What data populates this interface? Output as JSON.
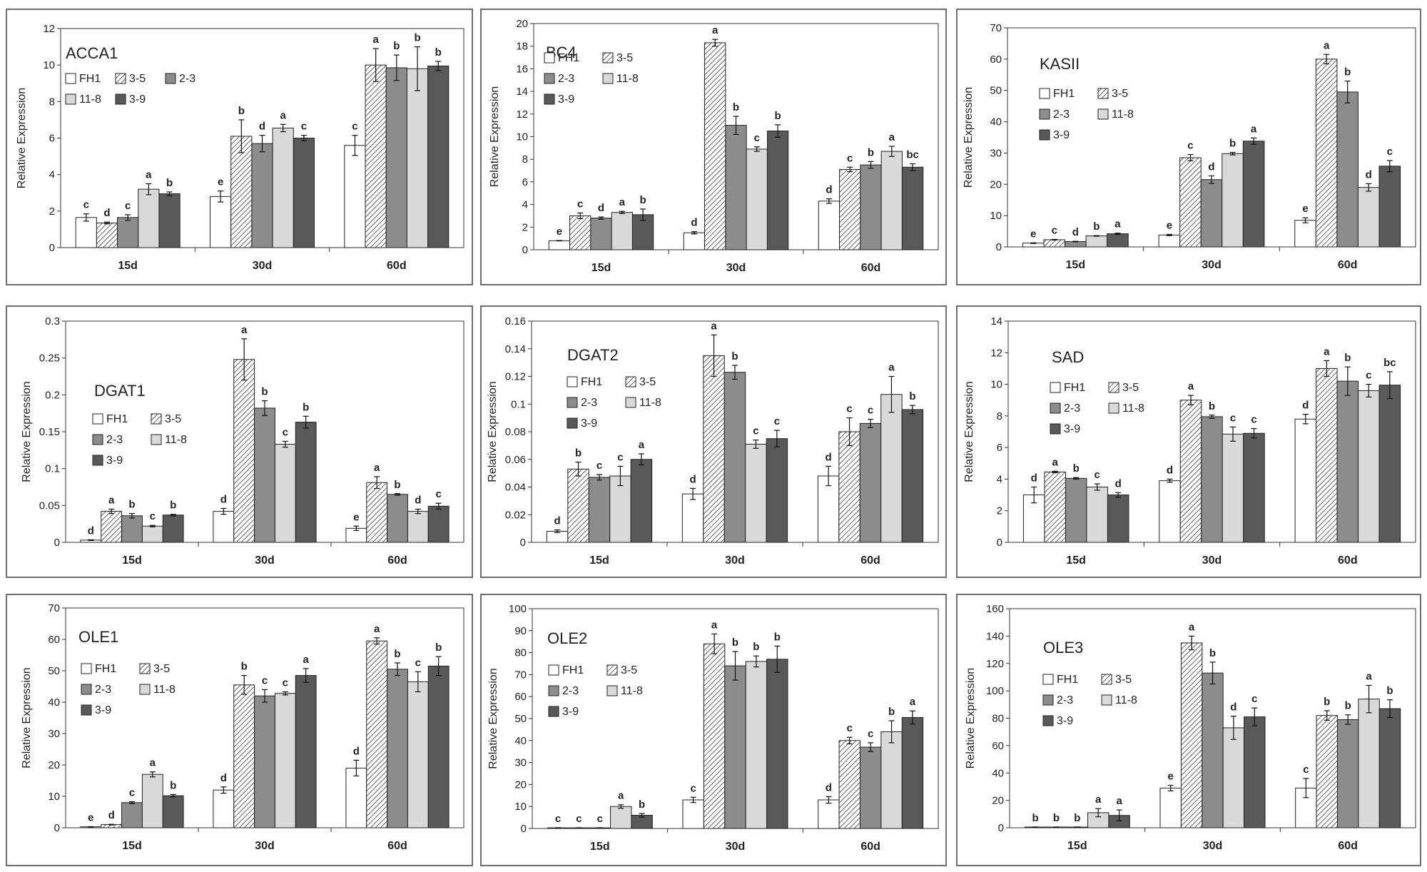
{
  "colors": {
    "FH1": "#ffffff",
    "3-5": "hatch",
    "2-3": "#8c8c8c",
    "11-8": "#d9d9d9",
    "3-9": "#595959",
    "frame": "#6e6e6e",
    "ink": "#222222"
  },
  "chart_data": [
    {
      "type": "bar",
      "title": "ACCA1",
      "ylabel": "Relative Expression",
      "categories": [
        "15d",
        "30d",
        "60d"
      ],
      "ylim": [
        0,
        12
      ],
      "yticks": [
        "0",
        "2",
        "4",
        "6",
        "8",
        "10",
        "12"
      ],
      "legend": [
        "FH1",
        "3-5",
        "2-3",
        "11-8",
        "3-9"
      ],
      "series": [
        {
          "name": "FH1",
          "values": [
            1.65,
            2.8,
            5.6
          ],
          "errors": [
            0.2,
            0.3,
            0.55
          ],
          "letters": [
            "c",
            "e",
            "c"
          ]
        },
        {
          "name": "3-5",
          "values": [
            1.35,
            6.1,
            10.0
          ],
          "errors": [
            0.05,
            0.9,
            0.9
          ],
          "letters": [
            "d",
            "b",
            "a"
          ]
        },
        {
          "name": "2-3",
          "values": [
            1.65,
            5.7,
            9.85
          ],
          "errors": [
            0.15,
            0.45,
            0.7
          ],
          "letters": [
            "c",
            "d",
            "b"
          ]
        },
        {
          "name": "11-8",
          "values": [
            3.2,
            6.55,
            9.8
          ],
          "errors": [
            0.3,
            0.2,
            1.2
          ],
          "letters": [
            "a",
            "a",
            "b"
          ]
        },
        {
          "name": "3-9",
          "values": [
            2.95,
            6.0,
            9.95
          ],
          "errors": [
            0.1,
            0.15,
            0.25
          ],
          "letters": [
            "b",
            "c",
            "b"
          ]
        }
      ]
    },
    {
      "type": "bar",
      "title": "BC4",
      "ylabel": "Relative Expression",
      "categories": [
        "15d",
        "30d",
        "60d"
      ],
      "ylim": [
        0,
        20
      ],
      "yticks": [
        "0",
        "2",
        "4",
        "6",
        "8",
        "10",
        "12",
        "14",
        "16",
        "18",
        "20"
      ],
      "legend": [
        "FH1",
        "3-5",
        "2-3",
        "11-8",
        "3-9"
      ],
      "series": [
        {
          "name": "FH1",
          "values": [
            0.8,
            1.5,
            4.3
          ],
          "errors": [
            0.02,
            0.1,
            0.2
          ],
          "letters": [
            "e",
            "d",
            "d"
          ]
        },
        {
          "name": "3-5",
          "values": [
            3.0,
            18.3,
            7.1
          ],
          "errors": [
            0.25,
            0.3,
            0.2
          ],
          "letters": [
            "c",
            "a",
            "c"
          ]
        },
        {
          "name": "2-3",
          "values": [
            2.8,
            11.0,
            7.5
          ],
          "errors": [
            0.1,
            0.8,
            0.3
          ],
          "letters": [
            "d",
            "b",
            "b"
          ]
        },
        {
          "name": "11-8",
          "values": [
            3.3,
            8.9,
            8.7
          ],
          "errors": [
            0.1,
            0.2,
            0.45
          ],
          "letters": [
            "a",
            "c",
            "a"
          ]
        },
        {
          "name": "3-9",
          "values": [
            3.1,
            10.5,
            7.3
          ],
          "errors": [
            0.5,
            0.55,
            0.3
          ],
          "letters": [
            "b",
            "b",
            "bc"
          ]
        }
      ]
    },
    {
      "type": "bar",
      "title": "KASII",
      "ylabel": "Relative Expression",
      "categories": [
        "15d",
        "30d",
        "60d"
      ],
      "ylim": [
        0,
        70
      ],
      "yticks": [
        "0",
        "10",
        "20",
        "30",
        "40",
        "50",
        "60",
        "70"
      ],
      "legend": [
        "FH1",
        "3-5",
        "2-3",
        "11-8",
        "3-9"
      ],
      "series": [
        {
          "name": "FH1",
          "values": [
            1.2,
            3.8,
            8.5
          ],
          "errors": [
            0.1,
            0.2,
            0.8
          ],
          "letters": [
            "e",
            "e",
            "e"
          ]
        },
        {
          "name": "3-5",
          "values": [
            2.3,
            28.5,
            60.0
          ],
          "errors": [
            0.1,
            1.0,
            1.5
          ],
          "letters": [
            "c",
            "c",
            "a"
          ]
        },
        {
          "name": "2-3",
          "values": [
            1.7,
            21.5,
            49.5
          ],
          "errors": [
            0.1,
            1.2,
            3.5
          ],
          "letters": [
            "d",
            "d",
            "b"
          ]
        },
        {
          "name": "11-8",
          "values": [
            3.5,
            29.8,
            19.0
          ],
          "errors": [
            0.1,
            0.4,
            1.2
          ],
          "letters": [
            "b",
            "b",
            "d"
          ]
        },
        {
          "name": "3-9",
          "values": [
            4.2,
            33.8,
            25.8
          ],
          "errors": [
            0.2,
            1.0,
            1.8
          ],
          "letters": [
            "a",
            "a",
            "c"
          ]
        }
      ]
    },
    {
      "type": "bar",
      "title": "DGAT1",
      "ylabel": "Relative Expression",
      "categories": [
        "15d",
        "30d",
        "60d"
      ],
      "ylim": [
        0,
        0.3
      ],
      "yticks": [
        "0",
        "0.05",
        "0.1",
        "0.15",
        "0.2",
        "0.25",
        "0.3"
      ],
      "legend": [
        "FH1",
        "3-5",
        "2-3",
        "11-8",
        "3-9"
      ],
      "series": [
        {
          "name": "FH1",
          "values": [
            0.003,
            0.042,
            0.019
          ],
          "errors": [
            0.0005,
            0.004,
            0.003
          ],
          "letters": [
            "d",
            "d",
            "e"
          ]
        },
        {
          "name": "3-5",
          "values": [
            0.042,
            0.248,
            0.081
          ],
          "errors": [
            0.003,
            0.028,
            0.008
          ],
          "letters": [
            "a",
            "a",
            "a"
          ]
        },
        {
          "name": "2-3",
          "values": [
            0.036,
            0.182,
            0.065
          ],
          "errors": [
            0.003,
            0.01,
            0.001
          ],
          "letters": [
            "b",
            "b",
            "b"
          ]
        },
        {
          "name": "11-8",
          "values": [
            0.022,
            0.133,
            0.042
          ],
          "errors": [
            0.001,
            0.004,
            0.003
          ],
          "letters": [
            "c",
            "c",
            "d"
          ]
        },
        {
          "name": "3-9",
          "values": [
            0.037,
            0.163,
            0.049
          ],
          "errors": [
            0.001,
            0.008,
            0.004
          ],
          "letters": [
            "b",
            "b",
            "c"
          ]
        }
      ]
    },
    {
      "type": "bar",
      "title": "DGAT2",
      "ylabel": "Relative Expression",
      "categories": [
        "15d",
        "30d",
        "60d"
      ],
      "ylim": [
        0,
        0.16
      ],
      "yticks": [
        "0",
        "0.02",
        "0.04",
        "0.06",
        "0.08",
        "0.1",
        "0.12",
        "0.14",
        "0.16"
      ],
      "legend": [
        "FH1",
        "3-5",
        "2-3",
        "11-8",
        "3-9"
      ],
      "series": [
        {
          "name": "FH1",
          "values": [
            0.008,
            0.035,
            0.048
          ],
          "errors": [
            0.001,
            0.004,
            0.007
          ],
          "letters": [
            "d",
            "d",
            "d"
          ]
        },
        {
          "name": "3-5",
          "values": [
            0.053,
            0.135,
            0.08
          ],
          "errors": [
            0.005,
            0.015,
            0.01
          ],
          "letters": [
            "b",
            "a",
            "c"
          ]
        },
        {
          "name": "2-3",
          "values": [
            0.047,
            0.123,
            0.086
          ],
          "errors": [
            0.002,
            0.005,
            0.003
          ],
          "letters": [
            "c",
            "b",
            "c"
          ]
        },
        {
          "name": "11-8",
          "values": [
            0.048,
            0.071,
            0.107
          ],
          "errors": [
            0.007,
            0.003,
            0.013
          ],
          "letters": [
            "c",
            "c",
            "a"
          ]
        },
        {
          "name": "3-9",
          "values": [
            0.06,
            0.075,
            0.096
          ],
          "errors": [
            0.004,
            0.006,
            0.003
          ],
          "letters": [
            "a",
            "c",
            "b"
          ]
        }
      ]
    },
    {
      "type": "bar",
      "title": "SAD",
      "ylabel": "Relative Expression",
      "categories": [
        "15d",
        "30d",
        "60d"
      ],
      "ylim": [
        0,
        14
      ],
      "yticks": [
        "0",
        "2",
        "4",
        "6",
        "8",
        "10",
        "12",
        "14"
      ],
      "legend": [
        "FH1",
        "3-5",
        "2-3",
        "11-8",
        "3-9"
      ],
      "series": [
        {
          "name": "FH1",
          "values": [
            3.0,
            3.9,
            7.8
          ],
          "errors": [
            0.5,
            0.1,
            0.3
          ],
          "letters": [
            "d",
            "d",
            "d"
          ]
        },
        {
          "name": "3-5",
          "values": [
            4.45,
            9.0,
            11.0
          ],
          "errors": [
            0.05,
            0.3,
            0.5
          ],
          "letters": [
            "a",
            "a",
            "a"
          ]
        },
        {
          "name": "2-3",
          "values": [
            4.05,
            7.95,
            10.2
          ],
          "errors": [
            0.05,
            0.1,
            0.9
          ],
          "letters": [
            "b",
            "b",
            "b"
          ]
        },
        {
          "name": "11-8",
          "values": [
            3.5,
            6.85,
            9.6
          ],
          "errors": [
            0.2,
            0.45,
            0.4
          ],
          "letters": [
            "c",
            "c",
            "c"
          ]
        },
        {
          "name": "3-9",
          "values": [
            3.0,
            6.9,
            9.95
          ],
          "errors": [
            0.15,
            0.3,
            0.85
          ],
          "letters": [
            "d",
            "c",
            "bc"
          ]
        }
      ]
    },
    {
      "type": "bar",
      "title": "OLE1",
      "ylabel": "Relative Expression",
      "categories": [
        "15d",
        "30d",
        "60d"
      ],
      "ylim": [
        0,
        70
      ],
      "yticks": [
        "0",
        "10",
        "20",
        "30",
        "40",
        "50",
        "60",
        "70"
      ],
      "legend": [
        "FH1",
        "3-5",
        "2-3",
        "11-8",
        "3-9"
      ],
      "series": [
        {
          "name": "FH1",
          "values": [
            0.3,
            12.0,
            19.0
          ],
          "errors": [
            0.05,
            1.0,
            2.5
          ],
          "letters": [
            "e",
            "d",
            "d"
          ]
        },
        {
          "name": "3-5",
          "values": [
            1.0,
            45.5,
            59.5
          ],
          "errors": [
            0.1,
            3.0,
            1.0
          ],
          "letters": [
            "d",
            "b",
            "a"
          ]
        },
        {
          "name": "2-3",
          "values": [
            8.0,
            42.0,
            50.5
          ],
          "errors": [
            0.3,
            2.0,
            2.0
          ],
          "letters": [
            "c",
            "c",
            "b"
          ]
        },
        {
          "name": "11-8",
          "values": [
            17.0,
            42.8,
            46.5
          ],
          "errors": [
            0.8,
            0.5,
            3.2
          ],
          "letters": [
            "a",
            "c",
            "c"
          ]
        },
        {
          "name": "3-9",
          "values": [
            10.2,
            48.5,
            51.5
          ],
          "errors": [
            0.4,
            2.2,
            3.0
          ],
          "letters": [
            "b",
            "a",
            "b"
          ]
        }
      ]
    },
    {
      "type": "bar",
      "title": "OLE2",
      "ylabel": "Relative Expression",
      "categories": [
        "15d",
        "30d",
        "60d"
      ],
      "ylim": [
        0,
        100
      ],
      "yticks": [
        "0",
        "10",
        "20",
        "30",
        "40",
        "50",
        "60",
        "70",
        "80",
        "90",
        "100"
      ],
      "legend": [
        "FH1",
        "3-5",
        "2-3",
        "11-8",
        "3-9"
      ],
      "series": [
        {
          "name": "FH1",
          "values": [
            0.3,
            13.0,
            13.0
          ],
          "errors": [
            0.05,
            1.2,
            1.5
          ],
          "letters": [
            "c",
            "c",
            "d"
          ]
        },
        {
          "name": "3-5",
          "values": [
            0.3,
            84.0,
            40.0
          ],
          "errors": [
            0.05,
            4.5,
            1.5
          ],
          "letters": [
            "c",
            "a",
            "c"
          ]
        },
        {
          "name": "2-3",
          "values": [
            0.3,
            74.0,
            37.0
          ],
          "errors": [
            0.05,
            6.5,
            2.0
          ],
          "letters": [
            "c",
            "b",
            "c"
          ]
        },
        {
          "name": "11-8",
          "values": [
            10.0,
            76.0,
            44.0
          ],
          "errors": [
            0.8,
            2.5,
            5.0
          ],
          "letters": [
            "a",
            "b",
            "b"
          ]
        },
        {
          "name": "3-9",
          "values": [
            6.0,
            77.0,
            50.5
          ],
          "errors": [
            0.8,
            6.0,
            3.0
          ],
          "letters": [
            "b",
            "b",
            "a"
          ]
        }
      ]
    },
    {
      "type": "bar",
      "title": "OLE3",
      "ylabel": "Relative Expression",
      "categories": [
        "15d",
        "30d",
        "60d"
      ],
      "ylim": [
        0,
        160
      ],
      "yticks": [
        "0",
        "20",
        "40",
        "60",
        "80",
        "100",
        "120",
        "140",
        "160"
      ],
      "legend": [
        "FH1",
        "3-5",
        "2-3",
        "11-8",
        "3-9"
      ],
      "series": [
        {
          "name": "FH1",
          "values": [
            0.5,
            29.0,
            29.0
          ],
          "errors": [
            0.1,
            2.0,
            7.0
          ],
          "letters": [
            "b",
            "e",
            "c"
          ]
        },
        {
          "name": "3-5",
          "values": [
            0.5,
            135.0,
            82.0
          ],
          "errors": [
            0.1,
            5.0,
            3.5
          ],
          "letters": [
            "b",
            "a",
            "b"
          ]
        },
        {
          "name": "2-3",
          "values": [
            0.5,
            113.0,
            79.0
          ],
          "errors": [
            0.1,
            8.0,
            3.5
          ],
          "letters": [
            "b",
            "b",
            "b"
          ]
        },
        {
          "name": "11-8",
          "values": [
            11.0,
            73.0,
            94.0
          ],
          "errors": [
            3.0,
            8.5,
            10.0
          ],
          "letters": [
            "a",
            "d",
            "a"
          ]
        },
        {
          "name": "3-9",
          "values": [
            9.0,
            81.0,
            87.0
          ],
          "errors": [
            4.0,
            6.5,
            6.5
          ],
          "letters": [
            "a",
            "c",
            "b"
          ]
        }
      ]
    }
  ]
}
